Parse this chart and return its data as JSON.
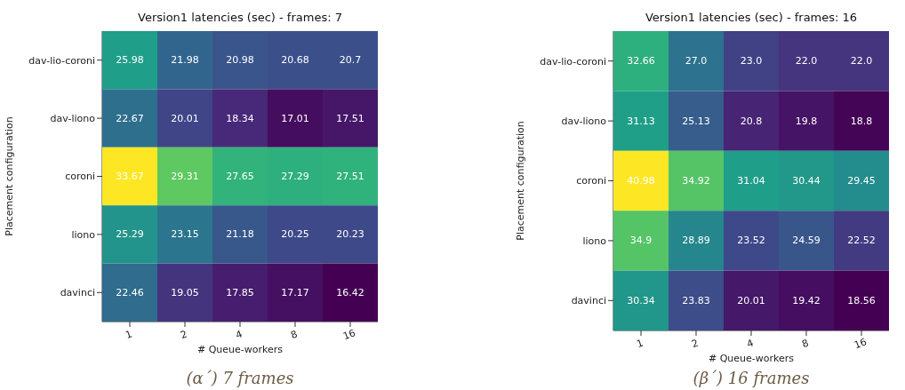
{
  "chart_data": [
    {
      "type": "heatmap",
      "title": "Version1 latencies (sec) - frames: 7",
      "xlabel": "# Queue-workers",
      "ylabel": "Placement configuration",
      "categories": [
        "1",
        "2",
        "4",
        "8",
        "16"
      ],
      "y_categories": [
        "dav-lio-coroni",
        "dav-liono",
        "coroni",
        "liono",
        "davinci"
      ],
      "cells": [
        [
          25.98,
          21.98,
          20.98,
          20.68,
          20.7
        ],
        [
          22.67,
          20.01,
          18.34,
          17.01,
          17.51
        ],
        [
          33.67,
          29.31,
          27.65,
          27.29,
          27.51
        ],
        [
          25.29,
          23.15,
          21.18,
          20.25,
          20.23
        ],
        [
          22.46,
          19.05,
          17.85,
          17.17,
          16.42
        ]
      ],
      "cell_labels": [
        [
          "25.98",
          "21.98",
          "20.98",
          "20.68",
          "20.7"
        ],
        [
          "22.67",
          "20.01",
          "18.34",
          "17.01",
          "17.51"
        ],
        [
          "33.67",
          "29.31",
          "27.65",
          "27.29",
          "27.51"
        ],
        [
          "25.29",
          "23.15",
          "21.18",
          "20.25",
          "20.23"
        ],
        [
          "22.46",
          "19.05",
          "17.85",
          "17.17",
          "16.42"
        ]
      ],
      "annotations": [
        "(α΄) 7 frames"
      ]
    },
    {
      "type": "heatmap",
      "title": "Version1 latencies (sec) - frames: 16",
      "xlabel": "# Queue-workers",
      "ylabel": "Placement configuration",
      "categories": [
        "1",
        "2",
        "4",
        "8",
        "16"
      ],
      "y_categories": [
        "dav-lio-coroni",
        "dav-liono",
        "coroni",
        "liono",
        "davinci"
      ],
      "cells": [
        [
          32.66,
          27.0,
          23.0,
          22.0,
          22.0
        ],
        [
          31.13,
          25.13,
          20.8,
          19.8,
          18.8
        ],
        [
          40.98,
          34.92,
          31.04,
          30.44,
          29.45
        ],
        [
          34.9,
          28.89,
          23.52,
          24.59,
          22.52
        ],
        [
          30.34,
          23.83,
          20.01,
          19.42,
          18.56
        ]
      ],
      "cell_labels": [
        [
          "32.66",
          "27.0",
          "23.0",
          "22.0",
          "22.0"
        ],
        [
          "31.13",
          "25.13",
          "20.8",
          "19.8",
          "18.8"
        ],
        [
          "40.98",
          "34.92",
          "31.04",
          "30.44",
          "29.45"
        ],
        [
          "34.9",
          "28.89",
          "23.52",
          "24.59",
          "22.52"
        ],
        [
          "30.34",
          "23.83",
          "20.01",
          "19.42",
          "18.56"
        ]
      ],
      "annotations": [
        "(β΄) 16 frames"
      ]
    }
  ]
}
